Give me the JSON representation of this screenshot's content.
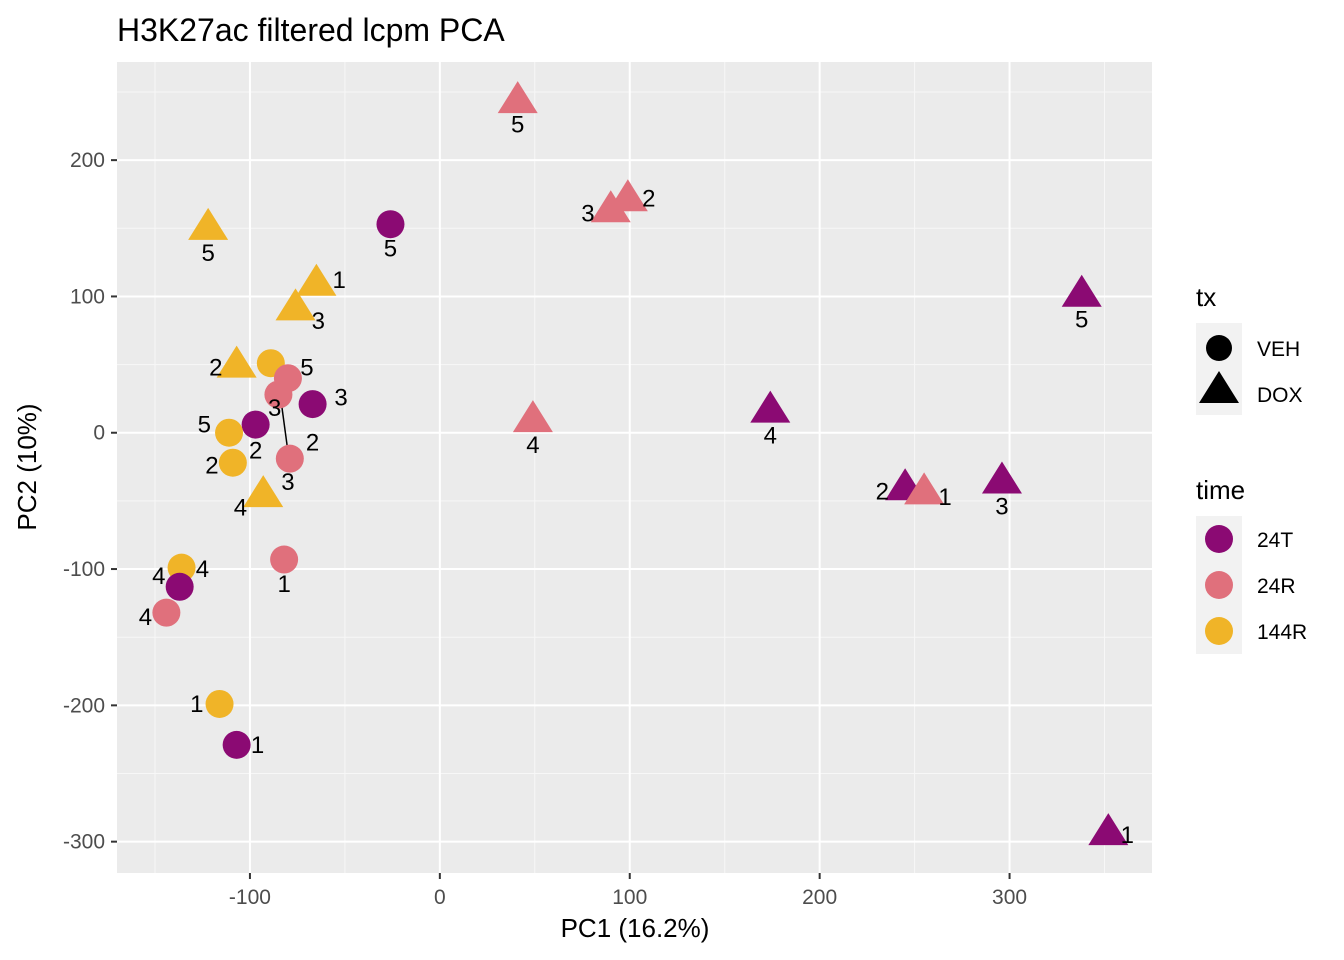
{
  "chart_data": {
    "type": "scatter",
    "title": "H3K27ac filtered lcpm PCA",
    "xlabel": "PC1 (16.2%)",
    "ylabel": "PC2 (10%)",
    "xlim": [
      -170,
      375
    ],
    "ylim": [
      -323,
      272
    ],
    "x_ticks": [
      -100,
      0,
      100,
      200,
      300
    ],
    "x_tick_labels": [
      "-100",
      "0",
      "100",
      "200",
      "300"
    ],
    "y_ticks": [
      -300,
      -200,
      -100,
      0,
      100,
      200
    ],
    "y_tick_labels": [
      "-300",
      "-200",
      "-100",
      "0",
      "100",
      "200"
    ],
    "grid": true,
    "legend_position": "right",
    "legend_tx": {
      "title": "tx",
      "items": [
        {
          "label": "VEH",
          "shape": "circle"
        },
        {
          "label": "DOX",
          "shape": "triangle"
        }
      ]
    },
    "legend_time": {
      "title": "time",
      "items": [
        {
          "label": "24T",
          "color": "#8b0a73"
        },
        {
          "label": "24R",
          "color": "#e0707c"
        },
        {
          "label": "144R",
          "color": "#f0b428"
        }
      ]
    },
    "points": [
      {
        "x": 41,
        "y": 244,
        "time": "24R",
        "tx": "DOX",
        "label": "5",
        "lx": 41,
        "ly": 226
      },
      {
        "x": 99,
        "y": 172,
        "time": "24R",
        "tx": "DOX",
        "label": "2",
        "lx": 110,
        "ly": 172
      },
      {
        "x": 90,
        "y": 164,
        "time": "24R",
        "tx": "DOX",
        "label": "3",
        "lx": 78,
        "ly": 161
      },
      {
        "x": -122,
        "y": 151,
        "time": "144R",
        "tx": "DOX",
        "label": "5",
        "lx": -122,
        "ly": 132
      },
      {
        "x": -26,
        "y": 153,
        "time": "24T",
        "tx": "VEH",
        "label": "5",
        "lx": -26,
        "ly": 135
      },
      {
        "x": 338,
        "y": 102,
        "time": "24T",
        "tx": "DOX",
        "label": "5",
        "lx": 338,
        "ly": 83
      },
      {
        "x": -65,
        "y": 110,
        "time": "144R",
        "tx": "DOX",
        "label": "1",
        "lx": -53,
        "ly": 112
      },
      {
        "x": -76,
        "y": 92,
        "time": "144R",
        "tx": "DOX",
        "label": "3",
        "lx": -64,
        "ly": 82
      },
      {
        "x": -107,
        "y": 50,
        "time": "144R",
        "tx": "DOX",
        "label": "2",
        "lx": -118,
        "ly": 48
      },
      {
        "x": -89,
        "y": 51,
        "time": "144R",
        "tx": "VEH",
        "label": "3",
        "lx": -87,
        "ly": 18
      },
      {
        "x": -80,
        "y": 40,
        "time": "24R",
        "tx": "VEH",
        "label": "5",
        "lx": -70,
        "ly": 48
      },
      {
        "x": -85,
        "y": 28,
        "time": "24R",
        "tx": "VEH",
        "label": "3",
        "lx": -80,
        "ly": -36
      },
      {
        "x": -67,
        "y": 21,
        "time": "24T",
        "tx": "VEH",
        "label": "3",
        "lx": -52,
        "ly": 26
      },
      {
        "x": 49,
        "y": 10,
        "time": "24R",
        "tx": "DOX",
        "label": "4",
        "lx": 49,
        "ly": -9
      },
      {
        "x": 174,
        "y": 17,
        "time": "24T",
        "tx": "DOX",
        "label": "4",
        "lx": 174,
        "ly": -2
      },
      {
        "x": -97,
        "y": 6,
        "time": "24T",
        "tx": "VEH",
        "label": "2",
        "lx": -97,
        "ly": -13
      },
      {
        "x": -111,
        "y": 0,
        "time": "144R",
        "tx": "VEH",
        "label": "5",
        "lx": -124,
        "ly": 6
      },
      {
        "x": -79,
        "y": -19,
        "time": "24R",
        "tx": "VEH",
        "label": "2",
        "lx": -67,
        "ly": -7
      },
      {
        "x": -109,
        "y": -22,
        "time": "144R",
        "tx": "VEH",
        "label": "2",
        "lx": -120,
        "ly": -24
      },
      {
        "x": -93,
        "y": -45,
        "time": "144R",
        "tx": "DOX",
        "label": "4",
        "lx": -105,
        "ly": -55
      },
      {
        "x": 245,
        "y": -40,
        "time": "24T",
        "tx": "DOX",
        "label": "2",
        "lx": 233,
        "ly": -43
      },
      {
        "x": 255,
        "y": -43,
        "time": "24R",
        "tx": "DOX",
        "label": "1",
        "lx": 266,
        "ly": -47
      },
      {
        "x": 296,
        "y": -35,
        "time": "24T",
        "tx": "DOX",
        "label": "3",
        "lx": 296,
        "ly": -54
      },
      {
        "x": -82,
        "y": -93,
        "time": "24R",
        "tx": "VEH",
        "label": "1",
        "lx": -82,
        "ly": -111
      },
      {
        "x": -136,
        "y": -99,
        "time": "144R",
        "tx": "VEH",
        "label": "4",
        "lx": -125,
        "ly": -100
      },
      {
        "x": -137,
        "y": -113,
        "time": "24T",
        "tx": "VEH",
        "label": "4",
        "lx": -148,
        "ly": -105
      },
      {
        "x": -144,
        "y": -132,
        "time": "24R",
        "tx": "VEH",
        "label": "4",
        "lx": -155,
        "ly": -135
      },
      {
        "x": -116,
        "y": -199,
        "time": "144R",
        "tx": "VEH",
        "label": "1",
        "lx": -128,
        "ly": -199
      },
      {
        "x": -107,
        "y": -229,
        "time": "24T",
        "tx": "VEH",
        "label": "1",
        "lx": -96,
        "ly": -229
      },
      {
        "x": 352,
        "y": -293,
        "time": "24T",
        "tx": "DOX",
        "label": "1",
        "lx": 362,
        "ly": -295
      }
    ],
    "segments": [
      {
        "x1": -86,
        "y1": 48,
        "x2": -79,
        "y2": -24
      }
    ]
  }
}
